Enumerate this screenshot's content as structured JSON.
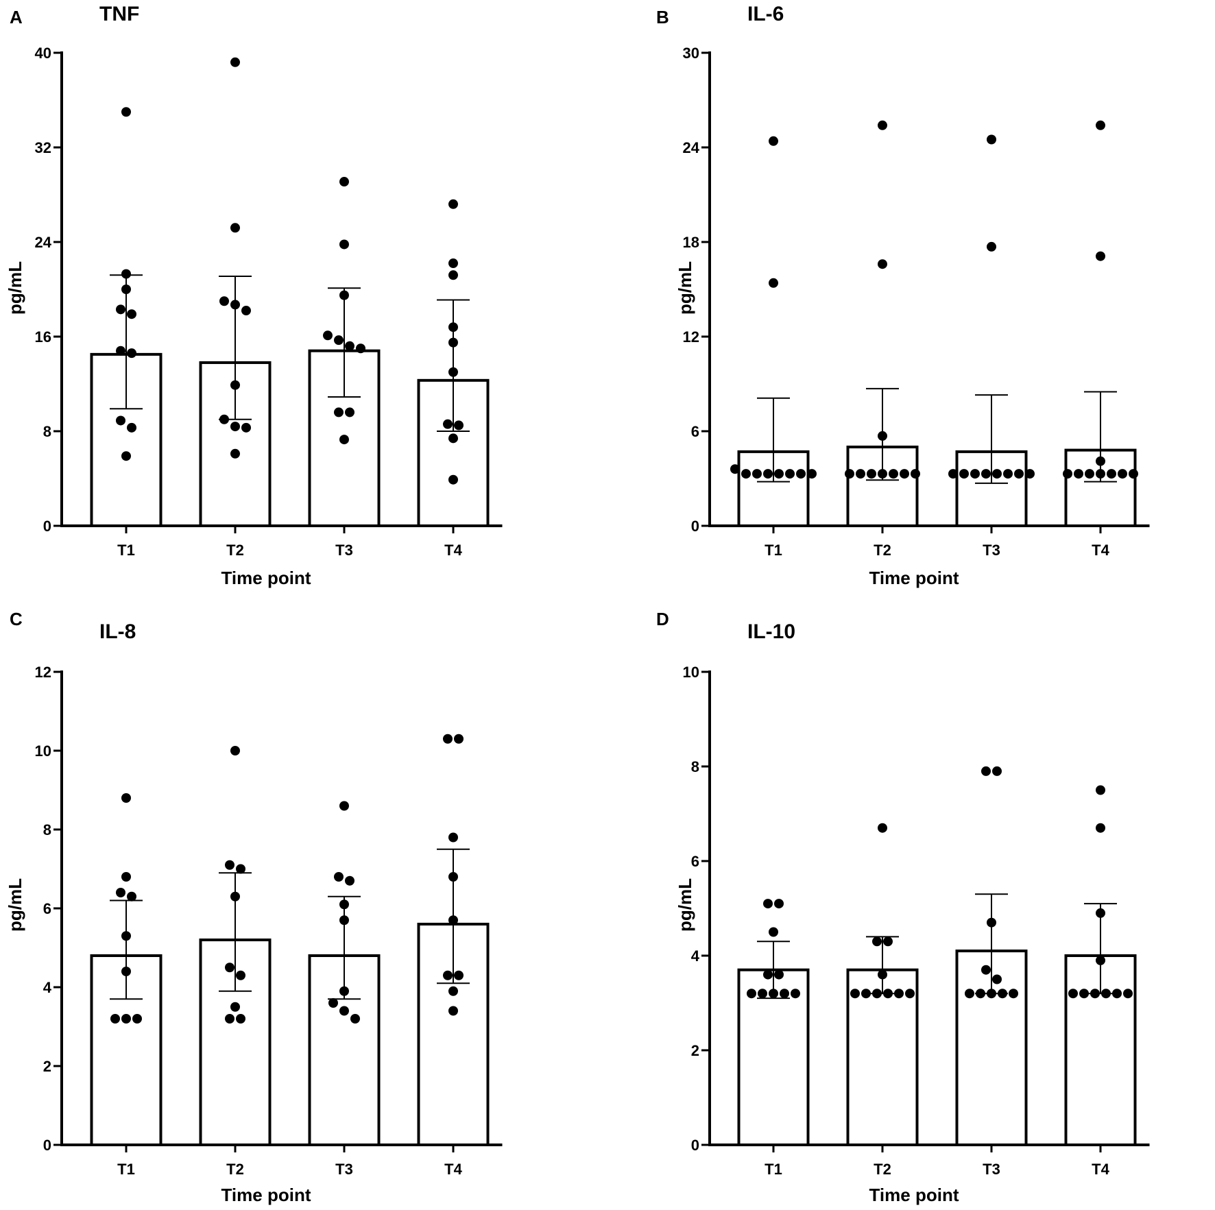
{
  "chart_data": [
    {
      "type": "bar",
      "panel": "A",
      "title": "TNF",
      "xlabel": "Time point",
      "ylabel": "pg/mL",
      "ylim": [
        0,
        40
      ],
      "yticks": [
        0,
        8,
        16,
        24,
        32,
        40
      ],
      "categories": [
        "T1",
        "T2",
        "T3",
        "T4"
      ],
      "values": [
        14.5,
        13.8,
        14.8,
        12.3
      ],
      "error_low": [
        9.9,
        9.0,
        10.9,
        8.0
      ],
      "error_high": [
        21.2,
        21.1,
        20.1,
        19.1
      ],
      "points": [
        [
          35.0,
          21.3,
          20.0,
          18.3,
          17.9,
          14.8,
          14.6,
          8.9,
          8.3,
          5.9
        ],
        [
          39.2,
          25.2,
          19.0,
          18.7,
          18.2,
          11.9,
          9.0,
          8.4,
          8.3,
          6.1
        ],
        [
          29.1,
          23.8,
          19.5,
          16.1,
          15.7,
          15.2,
          15.0,
          9.6,
          9.6,
          7.3
        ],
        [
          27.2,
          22.2,
          21.2,
          16.8,
          15.5,
          13.0,
          8.6,
          8.5,
          7.4,
          3.9
        ]
      ]
    },
    {
      "type": "bar",
      "panel": "B",
      "title": "IL-6",
      "xlabel": "Time point",
      "ylabel": "pg/mL",
      "ylim": [
        0,
        30
      ],
      "yticks": [
        0,
        6,
        12,
        18,
        24,
        30
      ],
      "categories": [
        "T1",
        "T2",
        "T3",
        "T4"
      ],
      "values": [
        4.7,
        5.0,
        4.7,
        4.8
      ],
      "error_low": [
        2.8,
        2.9,
        2.7,
        2.8
      ],
      "error_high": [
        8.1,
        8.7,
        8.3,
        8.5
      ],
      "points": [
        [
          24.4,
          15.4,
          3.6,
          3.3,
          3.3,
          3.3,
          3.3,
          3.3,
          3.3,
          3.3
        ],
        [
          25.4,
          16.6,
          5.7,
          3.3,
          3.3,
          3.3,
          3.3,
          3.3,
          3.3,
          3.3
        ],
        [
          24.5,
          17.7,
          3.3,
          3.3,
          3.3,
          3.3,
          3.3,
          3.3,
          3.3,
          3.3
        ],
        [
          25.4,
          17.1,
          4.1,
          3.3,
          3.3,
          3.3,
          3.3,
          3.3,
          3.3,
          3.3
        ]
      ]
    },
    {
      "type": "bar",
      "panel": "C",
      "title": "IL-8",
      "xlabel": "Time point",
      "ylabel": "pg/mL",
      "ylim": [
        0,
        12
      ],
      "yticks": [
        0,
        2,
        4,
        6,
        8,
        10,
        12
      ],
      "categories": [
        "T1",
        "T2",
        "T3",
        "T4"
      ],
      "values": [
        4.8,
        5.2,
        4.8,
        5.6
      ],
      "error_low": [
        3.7,
        3.9,
        3.7,
        4.1
      ],
      "error_high": [
        6.2,
        6.9,
        6.3,
        7.5
      ],
      "points": [
        [
          8.8,
          6.8,
          6.4,
          6.3,
          5.3,
          4.4,
          3.2,
          3.2,
          3.2
        ],
        [
          10.0,
          7.1,
          7.0,
          6.3,
          4.5,
          4.3,
          3.5,
          3.2,
          3.2
        ],
        [
          8.6,
          6.8,
          6.7,
          6.1,
          5.7,
          3.9,
          3.6,
          3.4,
          3.2
        ],
        [
          10.3,
          10.3,
          7.8,
          6.8,
          5.7,
          4.3,
          4.3,
          3.9,
          3.4
        ]
      ]
    },
    {
      "type": "bar",
      "panel": "D",
      "title": "IL-10",
      "xlabel": "Time point",
      "ylabel": "pg/mL",
      "ylim": [
        0,
        10
      ],
      "yticks": [
        0,
        2,
        4,
        6,
        8,
        10
      ],
      "categories": [
        "T1",
        "T2",
        "T3",
        "T4"
      ],
      "values": [
        3.7,
        3.7,
        4.1,
        4.0
      ],
      "error_low": [
        3.1,
        3.2,
        3.2,
        3.2
      ],
      "error_high": [
        4.3,
        4.4,
        5.3,
        5.1
      ],
      "points": [
        [
          5.1,
          5.1,
          4.5,
          3.6,
          3.6,
          3.2,
          3.2,
          3.2,
          3.2,
          3.2
        ],
        [
          6.7,
          4.3,
          4.3,
          3.6,
          3.2,
          3.2,
          3.2,
          3.2,
          3.2,
          3.2
        ],
        [
          7.9,
          7.9,
          4.7,
          3.7,
          3.5,
          3.2,
          3.2,
          3.2,
          3.2,
          3.2
        ],
        [
          7.5,
          6.7,
          4.9,
          3.9,
          3.2,
          3.2,
          3.2,
          3.2,
          3.2,
          3.2
        ]
      ]
    }
  ]
}
